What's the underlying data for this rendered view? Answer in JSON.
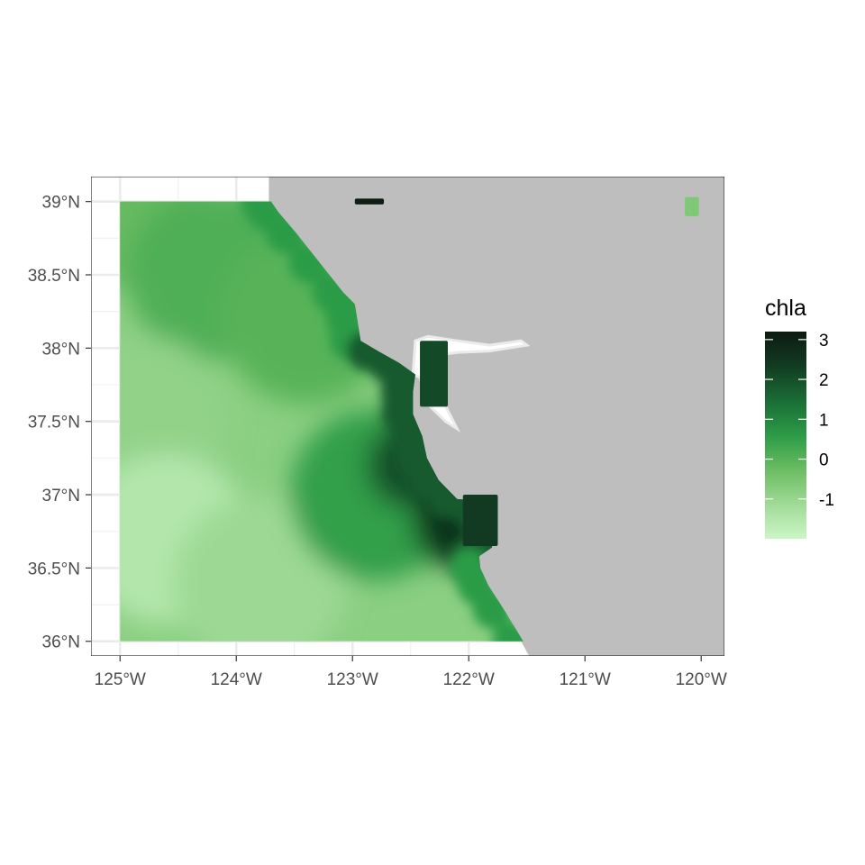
{
  "chart_data": {
    "type": "heatmap",
    "legend": {
      "title": "chla",
      "breaks": [
        3,
        2,
        1,
        0,
        -1
      ],
      "labels": [
        "3",
        "2",
        "1",
        "0",
        "-1"
      ],
      "range": [
        -2,
        3.2
      ],
      "colors": [
        "#ccf7c7",
        "#9fda96",
        "#6bbd62",
        "#2c9b46",
        "#1a6d36",
        "#123c22",
        "#0d1a10"
      ],
      "placement": "right"
    },
    "x_axis": {
      "ticks": [
        -125,
        -124,
        -123,
        -122,
        -121,
        -120
      ],
      "labels": [
        "125°W",
        "124°W",
        "123°W",
        "122°W",
        "121°W",
        "120°W"
      ],
      "lim": [
        -125.25,
        -119.8
      ]
    },
    "y_axis": {
      "ticks": [
        36,
        36.5,
        37,
        37.5,
        38,
        38.5,
        39
      ],
      "labels": [
        "36°N",
        "36.5°N",
        "37°N",
        "37.5°N",
        "38°N",
        "38.5°N",
        "39°N"
      ],
      "lim": [
        35.9,
        39.17
      ]
    },
    "grid": true,
    "land_color": "#bebebe",
    "ocean_color": "#ffffff",
    "data_extent": {
      "lon": [
        -125,
        -121.55
      ],
      "lat": [
        36,
        39
      ]
    },
    "offshore_field": [
      {
        "lon": -125,
        "lat": 39,
        "chla": -0.2
      },
      {
        "lon": -124.2,
        "lat": 38.5,
        "chla": 0.1
      },
      {
        "lon": -123.4,
        "lat": 38.2,
        "chla": 0.0
      },
      {
        "lon": -124.8,
        "lat": 37.5,
        "chla": -0.9
      },
      {
        "lon": -124.6,
        "lat": 36.7,
        "chla": -1.5
      },
      {
        "lon": -123.8,
        "lat": 36.4,
        "chla": -1.1
      },
      {
        "lon": -122.8,
        "lat": 37.0,
        "chla": 0.5
      },
      {
        "lon": -122.5,
        "lat": 37.2,
        "chla": 2.0
      },
      {
        "lon": -122.1,
        "lat": 36.8,
        "chla": 2.5
      },
      {
        "lon": -122.3,
        "lat": 37.75,
        "chla": 2.2
      }
    ],
    "features": [
      {
        "name": "tomales-block",
        "lon": [
          -122.98,
          -122.73
        ],
        "lat": [
          38.98,
          39.02
        ],
        "chla": 3.1
      },
      {
        "name": "inland-block-ne",
        "lon": [
          -120.14,
          -120.02
        ],
        "lat": [
          38.9,
          39.03
        ],
        "chla": -0.6
      },
      {
        "name": "san-francisco-bay",
        "lon": [
          -122.42,
          -122.18
        ],
        "lat": [
          37.6,
          38.05
        ],
        "chla": 2.1
      },
      {
        "name": "monterey-bay",
        "lon": [
          -122.05,
          -121.75
        ],
        "lat": [
          36.65,
          37.0
        ],
        "chla": 2.4
      }
    ]
  }
}
